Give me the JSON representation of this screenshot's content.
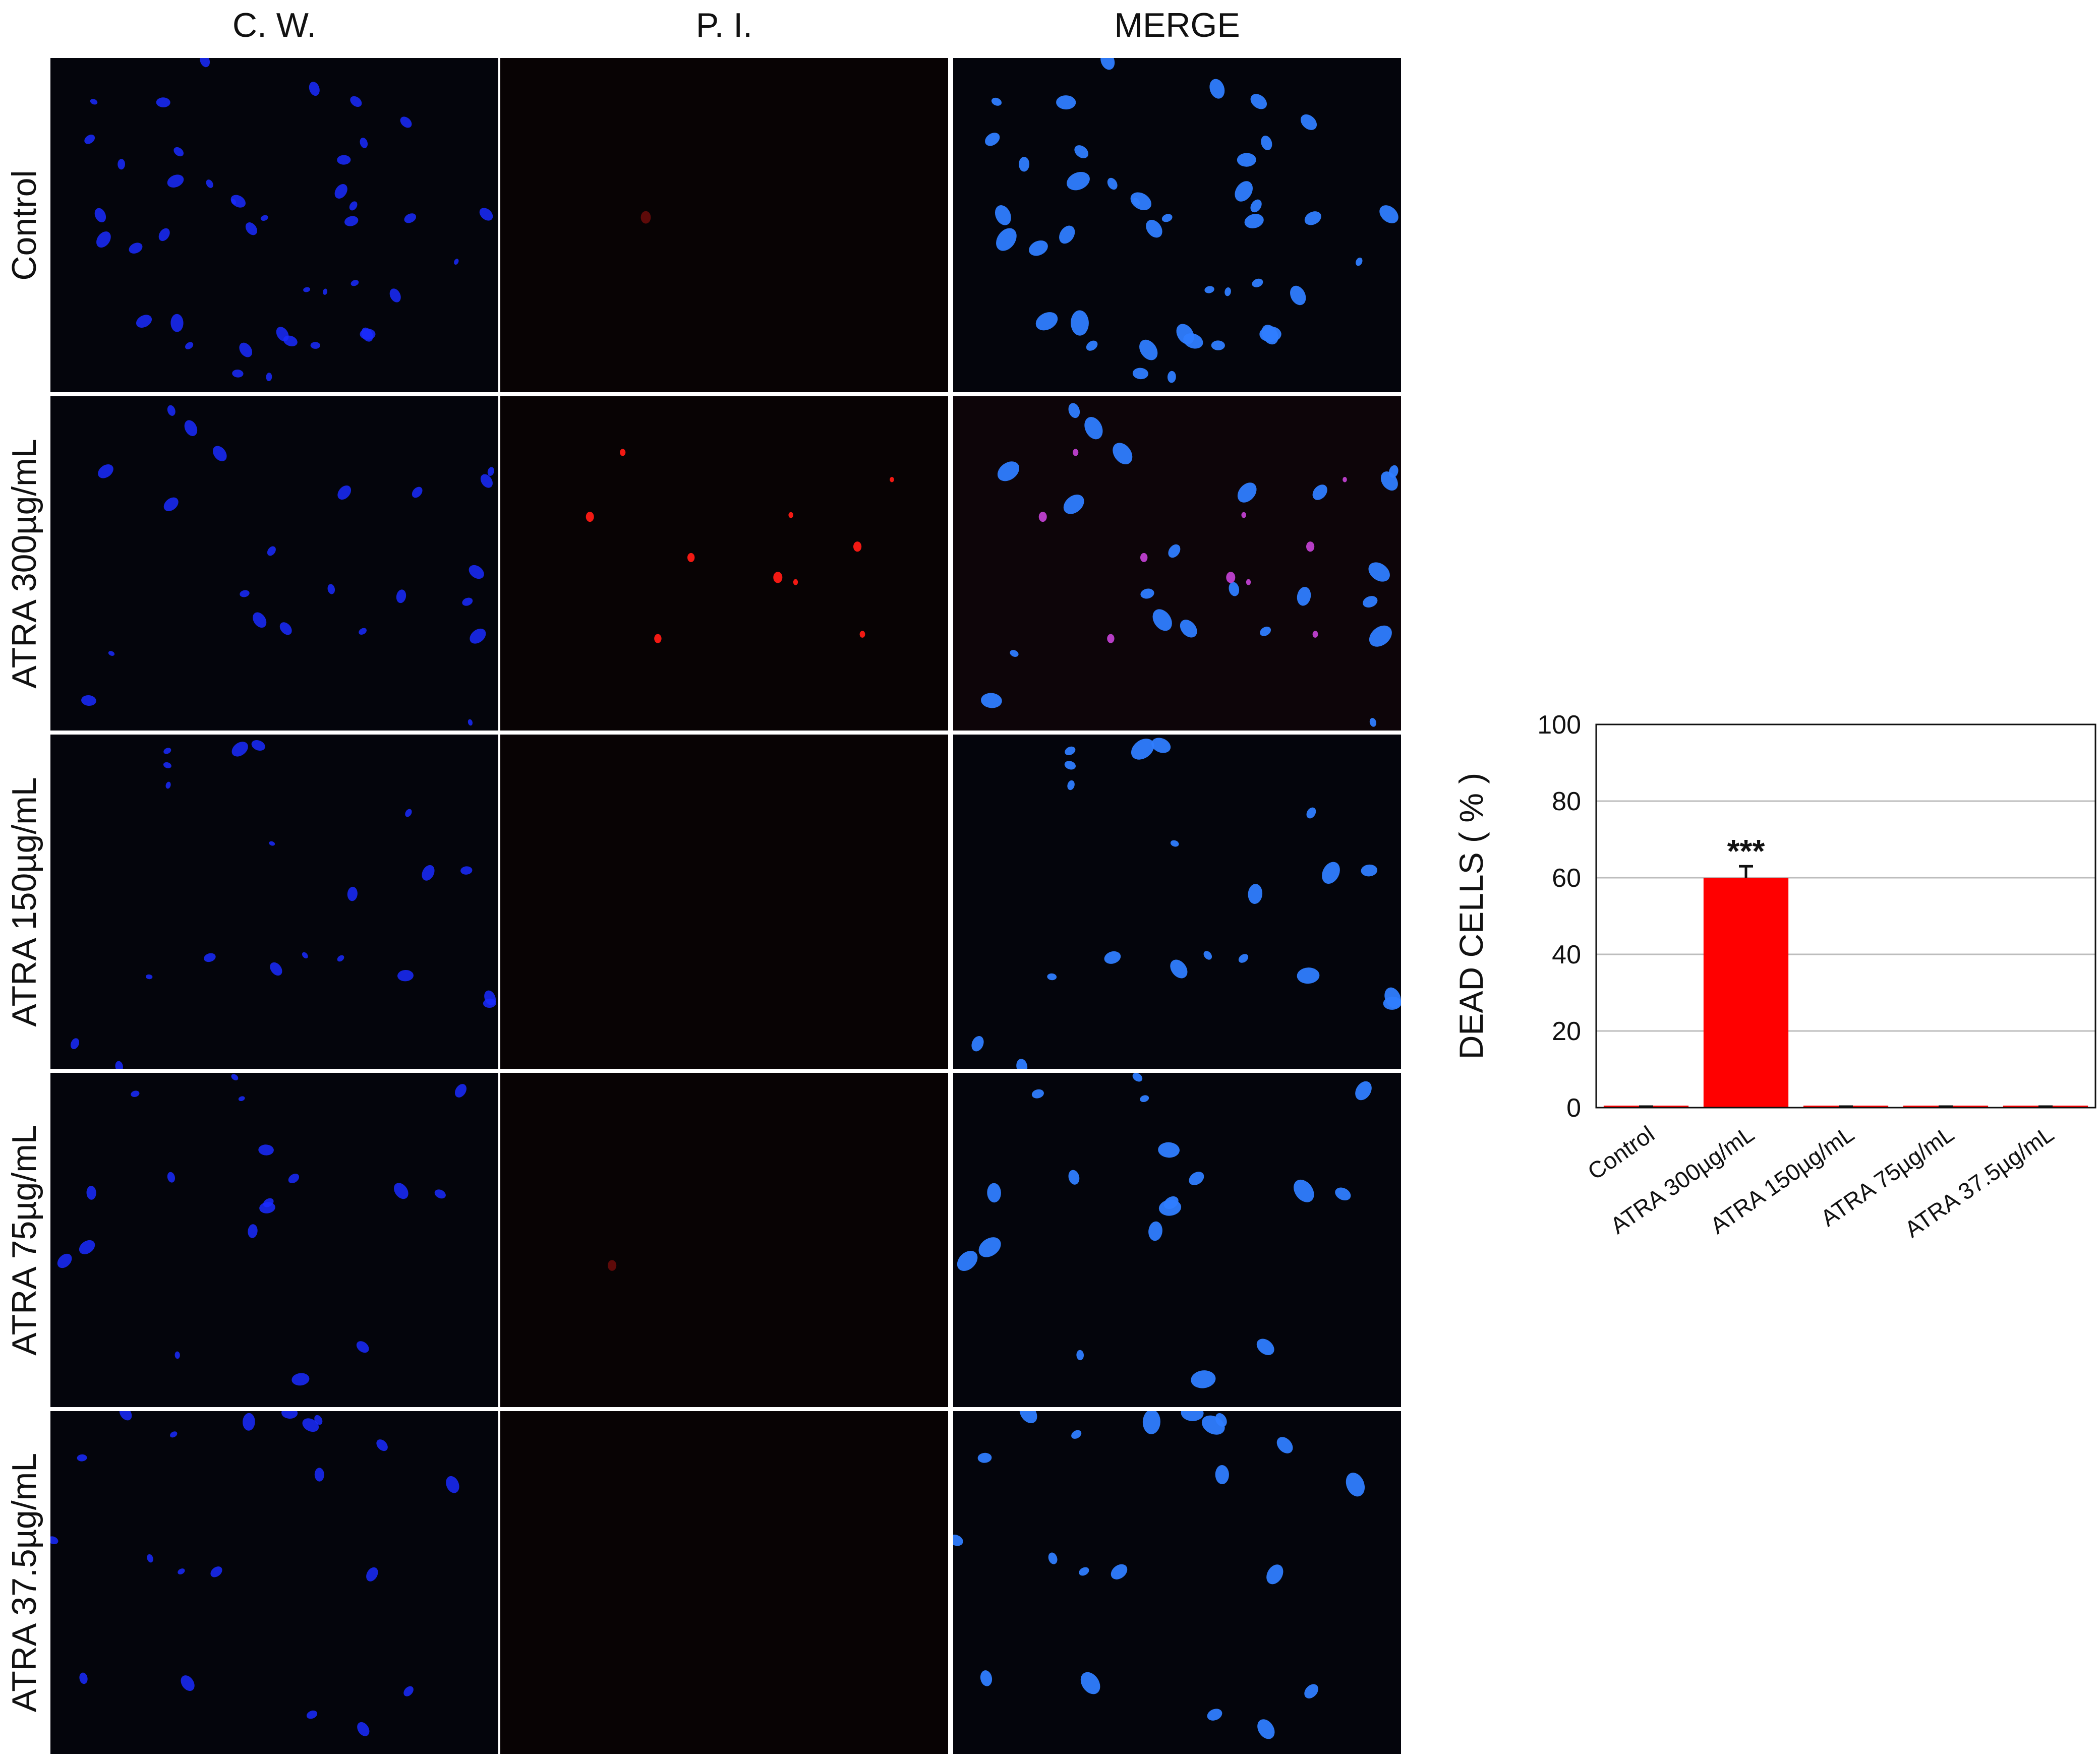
{
  "columns": [
    "C. W.",
    "P. I.",
    "MERGE"
  ],
  "rows": [
    "Control",
    "ATRA 300µg/mL",
    "ATRA 150µg/mL",
    "ATRA 75µg/mL",
    "ATRA 37.5µg/mL"
  ],
  "colors": {
    "cw_stain": "#1a2cff",
    "merge_stain": "#2f7dff",
    "pi_stain": "#ff1a14",
    "panel_background": "#04050c",
    "bar_fill": "#ff0000"
  },
  "chart_data": {
    "type": "bar",
    "categories": [
      "Control",
      "ATRA 300µg/mL",
      "ATRA 150µg/mL",
      "ATRA 75µg/mL",
      "ATRA 37.5µg/mL"
    ],
    "values": [
      0,
      60,
      0,
      0,
      0
    ],
    "errors": [
      0,
      3,
      0,
      0,
      0
    ],
    "significance": [
      "",
      "***",
      "",
      "",
      ""
    ],
    "ylabel": "DEAD CELLS ( % )",
    "xlabel": "",
    "ylim": [
      0,
      100
    ],
    "yticks": [
      0,
      20,
      40,
      60,
      80,
      100
    ],
    "grid": true,
    "legend": "none"
  }
}
